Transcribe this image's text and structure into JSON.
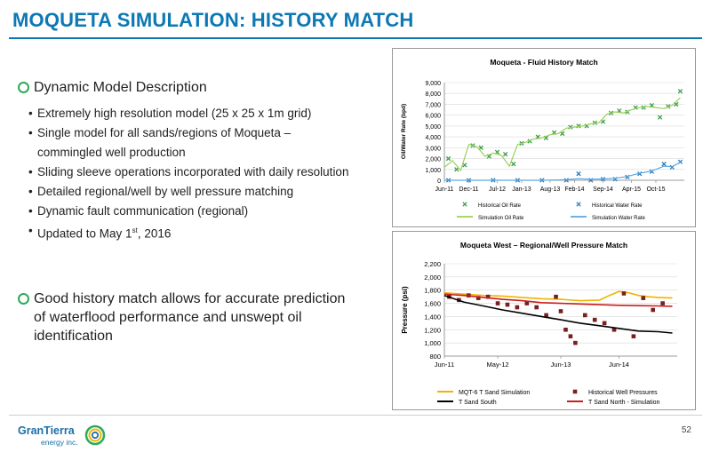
{
  "slide": {
    "title": "MOQUETA SIMULATION: HISTORY MATCH",
    "page_number": "52"
  },
  "content": {
    "heading1": "Dynamic Model Description",
    "bullets": [
      "Extremely high resolution model (25 x 25 x 1m grid)",
      "Single model for all sands/regions of Moqueta – commingled well production",
      "Sliding sleeve operations incorporated with daily resolution",
      "Detailed regional/well by well pressure matching",
      "Dynamic fault communication (regional)"
    ],
    "updated_prefix": "Updated to May 1",
    "updated_sup": "st",
    "updated_suffix": ", 2016",
    "heading2": "Good history match allows for accurate prediction of waterflood performance and unswept oil identification"
  },
  "logo": {
    "name": "GranTierra",
    "sub": "energy inc."
  },
  "colors": {
    "title_blue": "#0c78b4",
    "bullet_green": "#2eaa5a",
    "oil_green": "#9ccf5a",
    "oil_marker": "#38a04a",
    "water_blue": "#5aa8e0",
    "water_marker": "#2a7cc0",
    "mqt6": "#f0b400",
    "tsouth": "#000000",
    "tnorth": "#c81e1e",
    "hist_pressure": "#7a1e1e"
  },
  "chart_data": [
    {
      "type": "line",
      "title": "Moqueta - Fluid History Match",
      "ylabel": "Oil/Water Rate (bpd)",
      "xlabel": "",
      "ylim": [
        0,
        9000
      ],
      "yticks": [
        "0",
        "1,000",
        "2,000",
        "3,000",
        "4,000",
        "5,000",
        "6,000",
        "7,000",
        "8,000",
        "9,000"
      ],
      "xlim": [
        "2011-06",
        "2016-05"
      ],
      "xticks": [
        "Jun-11",
        "Dec-11",
        "Jul-12",
        "Jan-13",
        "Aug-13",
        "Feb-14",
        "Sep-14",
        "Apr-15",
        "Oct-15"
      ],
      "legend_position": "bottom",
      "series": [
        {
          "name": "Historical Oil Rate",
          "style": "marker",
          "x": [
            "2011-07",
            "2011-09",
            "2011-11",
            "2012-01",
            "2012-03",
            "2012-05",
            "2012-07",
            "2012-09",
            "2012-11",
            "2013-01",
            "2013-03",
            "2013-05",
            "2013-07",
            "2013-09",
            "2013-11",
            "2014-01",
            "2014-03",
            "2014-05",
            "2014-07",
            "2014-09",
            "2014-11",
            "2015-01",
            "2015-03",
            "2015-05",
            "2015-07",
            "2015-09",
            "2015-11",
            "2016-01",
            "2016-03",
            "2016-04"
          ],
          "values": [
            2000,
            1000,
            1400,
            3200,
            3000,
            2200,
            2600,
            2400,
            1500,
            3400,
            3600,
            4000,
            3900,
            4400,
            4300,
            4900,
            5000,
            5000,
            5300,
            5400,
            6200,
            6400,
            6300,
            6700,
            6700,
            6900,
            5800,
            6800,
            7000,
            8200
          ]
        },
        {
          "name": "Historical Water Rate",
          "style": "marker",
          "x": [
            "2011-07",
            "2011-12",
            "2012-06",
            "2012-12",
            "2013-06",
            "2013-12",
            "2014-03",
            "2014-06",
            "2014-09",
            "2014-12",
            "2015-03",
            "2015-06",
            "2015-09",
            "2015-12",
            "2016-02",
            "2016-04"
          ],
          "values": [
            0,
            0,
            0,
            0,
            0,
            0,
            600,
            0,
            100,
            100,
            300,
            600,
            800,
            1500,
            1200,
            1700
          ]
        },
        {
          "name": "Simulation Oil Rate",
          "style": "line",
          "x": [
            "2011-06",
            "2011-08",
            "2011-10",
            "2011-12",
            "2012-02",
            "2012-04",
            "2012-06",
            "2012-08",
            "2012-10",
            "2012-12",
            "2013-02",
            "2013-04",
            "2013-06",
            "2013-08",
            "2013-10",
            "2013-12",
            "2014-02",
            "2014-04",
            "2014-06",
            "2014-08",
            "2014-10",
            "2014-12",
            "2015-02",
            "2015-04",
            "2015-06",
            "2015-08",
            "2015-10",
            "2015-12",
            "2016-02",
            "2016-04"
          ],
          "values": [
            1200,
            1800,
            900,
            3300,
            3100,
            2200,
            2500,
            2300,
            1300,
            3300,
            3500,
            3800,
            3900,
            4200,
            4300,
            4800,
            4900,
            5000,
            5200,
            5300,
            6100,
            6300,
            6200,
            6500,
            6700,
            6800,
            6700,
            6600,
            6900,
            7600
          ]
        },
        {
          "name": "Simulation Water Rate",
          "style": "line",
          "x": [
            "2011-06",
            "2012-06",
            "2013-06",
            "2013-12",
            "2014-03",
            "2014-06",
            "2014-09",
            "2014-12",
            "2015-03",
            "2015-06",
            "2015-09",
            "2015-12",
            "2016-02",
            "2016-04"
          ],
          "values": [
            0,
            0,
            0,
            50,
            150,
            100,
            120,
            180,
            350,
            650,
            850,
            1300,
            1250,
            1650
          ]
        }
      ]
    },
    {
      "type": "line",
      "title": "Moqueta West – Regional/Well Pressure Match",
      "ylabel": "Pressure (psi)",
      "xlabel": "",
      "ylim": [
        800,
        2200
      ],
      "yticks": [
        "800",
        "1,000",
        "1,200",
        "1,400",
        "1,600",
        "1,800",
        "2,000",
        "2,200"
      ],
      "xlim": [
        "2011-06",
        "2015-06"
      ],
      "xticks": [
        "Jun-11",
        "May-12",
        "Jun-13",
        "Jun-14"
      ],
      "legend_position": "bottom",
      "series": [
        {
          "name": "MQT-6 T Sand Simulation",
          "style": "line",
          "x": [
            "2011-06",
            "2011-10",
            "2012-02",
            "2012-06",
            "2012-10",
            "2013-02",
            "2013-06",
            "2013-10",
            "2014-02",
            "2014-04",
            "2014-06",
            "2014-08",
            "2014-10",
            "2014-12",
            "2015-02",
            "2015-05"
          ],
          "values": [
            1760,
            1740,
            1720,
            1710,
            1690,
            1670,
            1660,
            1640,
            1650,
            1720,
            1780,
            1760,
            1720,
            1700,
            1690,
            1680
          ]
        },
        {
          "name": "Historical Well Pressures",
          "style": "marker",
          "x": [
            "2011-07",
            "2011-09",
            "2011-11",
            "2012-01",
            "2012-03",
            "2012-05",
            "2012-07",
            "2012-09",
            "2012-11",
            "2013-01",
            "2013-03",
            "2013-05",
            "2013-06",
            "2013-07",
            "2013-08",
            "2013-09",
            "2013-11",
            "2014-01",
            "2014-03",
            "2014-05",
            "2014-07",
            "2014-09",
            "2014-11",
            "2015-01",
            "2015-03"
          ],
          "values": [
            1700,
            1650,
            1720,
            1680,
            1700,
            1600,
            1580,
            1540,
            1600,
            1540,
            1420,
            1700,
            1480,
            1200,
            1100,
            1000,
            1420,
            1350,
            1300,
            1200,
            1750,
            1100,
            1680,
            1500,
            1600
          ]
        },
        {
          "name": "T Sand South",
          "style": "line",
          "x": [
            "2011-06",
            "2011-10",
            "2012-02",
            "2012-06",
            "2012-10",
            "2013-02",
            "2013-06",
            "2013-10",
            "2014-02",
            "2014-06",
            "2014-10",
            "2015-02",
            "2015-05"
          ],
          "values": [
            1720,
            1620,
            1560,
            1500,
            1450,
            1400,
            1350,
            1300,
            1260,
            1220,
            1180,
            1170,
            1150
          ]
        },
        {
          "name": "T Sand North - Simulation",
          "style": "line",
          "x": [
            "2011-06",
            "2011-10",
            "2012-02",
            "2012-06",
            "2012-10",
            "2013-02",
            "2013-06",
            "2013-10",
            "2014-02",
            "2014-06",
            "2014-10",
            "2015-02",
            "2015-05"
          ],
          "values": [
            1740,
            1720,
            1690,
            1660,
            1640,
            1610,
            1600,
            1590,
            1580,
            1570,
            1565,
            1560,
            1555
          ]
        }
      ]
    }
  ]
}
